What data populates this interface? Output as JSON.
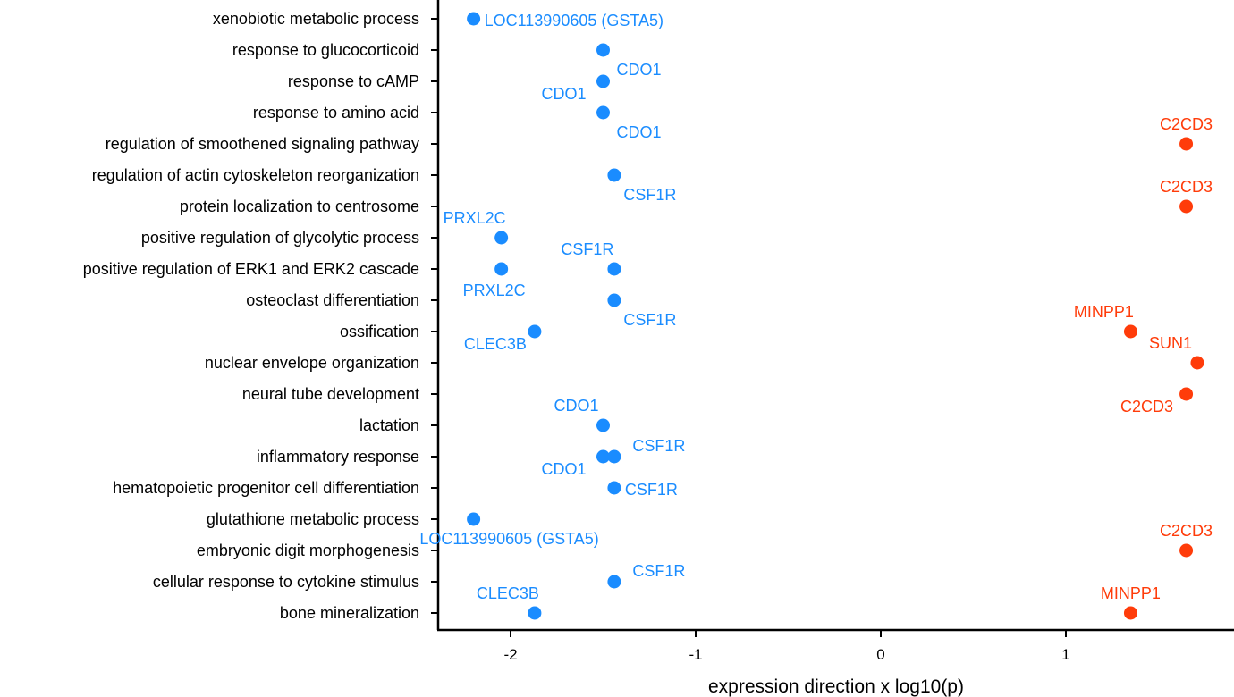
{
  "chart_data": {
    "type": "scatter",
    "title": "",
    "xlabel": "expression direction x log10(p)",
    "ylabel": "",
    "xlim": [
      -2.4,
      1.9
    ],
    "x_ticks": [
      -2,
      -1,
      0,
      1
    ],
    "x_tick_labels": [
      "-2",
      "-1",
      "0",
      "1"
    ],
    "grid": false,
    "legend": "none",
    "colors": {
      "down": "#1a8cff",
      "up": "#ff3c0a"
    },
    "categories": [
      "xenobiotic metabolic process",
      "response to glucocorticoid",
      "response to cAMP",
      "response to amino acid",
      "regulation of smoothened signaling pathway",
      "regulation of actin cytoskeleton reorganization",
      "protein localization to centrosome",
      "positive regulation of glycolytic process",
      "positive regulation of ERK1 and ERK2 cascade",
      "osteoclast differentiation",
      "ossification",
      "nuclear envelope organization",
      "neural tube development",
      "lactation",
      "inflammatory response",
      "hematopoietic progenitor cell differentiation",
      "glutathione metabolic process",
      "embryonic digit morphogenesis",
      "cellular response to cytokine stimulus",
      "bone mineralization"
    ],
    "points": [
      {
        "category": "xenobiotic metabolic process",
        "x": -2.2,
        "gene": "LOC113990605 (GSTA5)",
        "direction": "down",
        "label_pos": "right"
      },
      {
        "category": "response to glucocorticoid",
        "x": -1.5,
        "gene": "CDO1",
        "direction": "down",
        "label_pos": "below-right"
      },
      {
        "category": "response to cAMP",
        "x": -1.5,
        "gene": "CDO1",
        "direction": "down",
        "label_pos": "below-left"
      },
      {
        "category": "response to amino acid",
        "x": -1.5,
        "gene": "CDO1",
        "direction": "down",
        "label_pos": "below-right"
      },
      {
        "category": "regulation of smoothened signaling pathway",
        "x": 1.65,
        "gene": "C2CD3",
        "direction": "up",
        "label_pos": "above"
      },
      {
        "category": "regulation of actin cytoskeleton reorganization",
        "x": -1.44,
        "gene": "CSF1R",
        "direction": "down",
        "label_pos": "below-right"
      },
      {
        "category": "protein localization to centrosome",
        "x": 1.65,
        "gene": "C2CD3",
        "direction": "up",
        "label_pos": "above"
      },
      {
        "category": "positive regulation of glycolytic process",
        "x": -2.05,
        "gene": "PRXL2C",
        "direction": "down",
        "label_pos": "above-left"
      },
      {
        "category": "positive regulation of ERK1 and ERK2 cascade",
        "x": -2.05,
        "gene": "PRXL2C",
        "direction": "down",
        "label_pos": "below"
      },
      {
        "category": "positive regulation of ERK1 and ERK2 cascade",
        "x": -1.44,
        "gene": "CSF1R",
        "direction": "down",
        "label_pos": "above-left"
      },
      {
        "category": "osteoclast differentiation",
        "x": -1.44,
        "gene": "CSF1R",
        "direction": "down",
        "label_pos": "below-right"
      },
      {
        "category": "ossification",
        "x": -1.87,
        "gene": "CLEC3B",
        "direction": "down",
        "label_pos": "below-left"
      },
      {
        "category": "ossification",
        "x": 1.35,
        "gene": "MINPP1",
        "direction": "up",
        "label_pos": "above-left"
      },
      {
        "category": "nuclear envelope organization",
        "x": 1.71,
        "gene": "SUN1",
        "direction": "up",
        "label_pos": "above-left"
      },
      {
        "category": "neural tube development",
        "x": 1.65,
        "gene": "C2CD3",
        "direction": "up",
        "label_pos": "below-left"
      },
      {
        "category": "lactation",
        "x": -1.5,
        "gene": "CDO1",
        "direction": "down",
        "label_pos": "above-left"
      },
      {
        "category": "inflammatory response",
        "x": -1.5,
        "gene": "CDO1",
        "direction": "down",
        "label_pos": "below-left"
      },
      {
        "category": "inflammatory response",
        "x": -1.44,
        "gene": "CSF1R",
        "direction": "down",
        "label_pos": "above-right"
      },
      {
        "category": "hematopoietic progenitor cell differentiation",
        "x": -1.44,
        "gene": "CSF1R",
        "direction": "down",
        "label_pos": "right"
      },
      {
        "category": "glutathione metabolic process",
        "x": -2.2,
        "gene": "LOC113990605 (GSTA5)",
        "direction": "down",
        "label_pos": "below-right"
      },
      {
        "category": "embryonic digit morphogenesis",
        "x": 1.65,
        "gene": "C2CD3",
        "direction": "up",
        "label_pos": "above"
      },
      {
        "category": "cellular response to cytokine stimulus",
        "x": -1.44,
        "gene": "CSF1R",
        "direction": "down",
        "label_pos": "above-right"
      },
      {
        "category": "bone mineralization",
        "x": -1.87,
        "gene": "CLEC3B",
        "direction": "down",
        "label_pos": "above-left"
      },
      {
        "category": "bone mineralization",
        "x": 1.35,
        "gene": "MINPP1",
        "direction": "up",
        "label_pos": "above"
      }
    ]
  }
}
